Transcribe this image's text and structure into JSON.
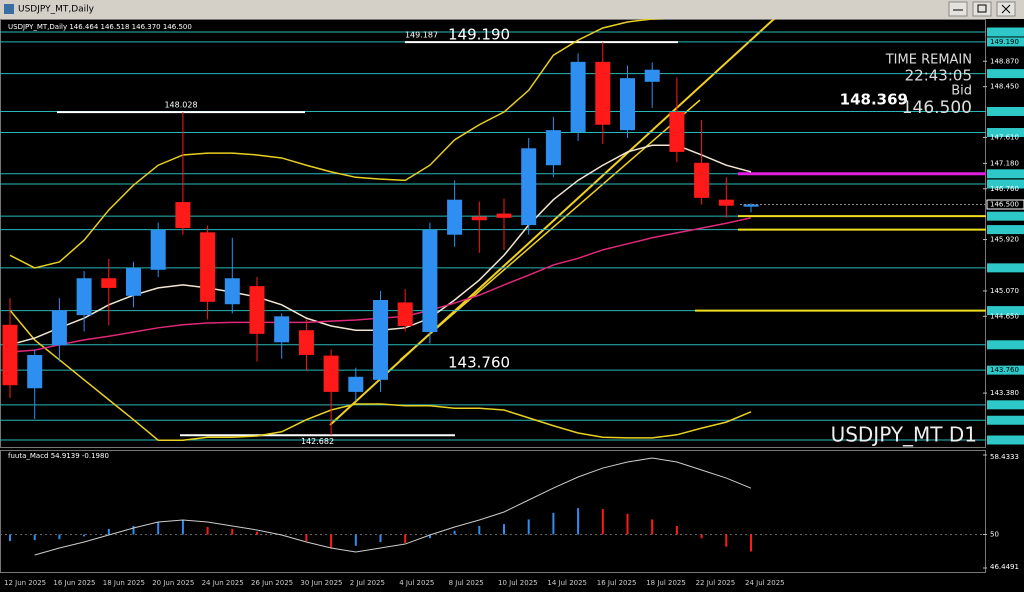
{
  "window": {
    "title": "USDJPY_MT,Daily"
  },
  "chart": {
    "header": "USDJPY_MT,Daily 146.464 146.518 146.370 146.500",
    "watermark": "USDJPY_MT D1",
    "info": {
      "time_label": "TIME REMAIN",
      "time": "22:43:05",
      "bid_label": "Bid",
      "alt_price": "148.369",
      "bid": "146.500"
    },
    "up_color": "#2e8ff0",
    "down_color": "#ff1a1a",
    "candles": [
      {
        "date": "12 Jun 2025",
        "open": 144.51,
        "high": 144.95,
        "low": 143.3,
        "close": 143.51
      },
      {
        "date": null,
        "open": 143.46,
        "high": 144.1,
        "low": 142.95,
        "close": 144.01
      },
      {
        "date": "16 Jun 2025",
        "open": 144.17,
        "high": 144.95,
        "low": 143.9,
        "close": 144.75
      },
      {
        "date": null,
        "open": 144.67,
        "high": 145.4,
        "low": 144.4,
        "close": 145.28
      },
      {
        "date": "18 Jun 2025",
        "open": 145.28,
        "high": 145.6,
        "low": 144.5,
        "close": 145.12
      },
      {
        "date": null,
        "open": 144.99,
        "high": 145.55,
        "low": 144.8,
        "close": 145.45
      },
      {
        "date": "20 Jun 2025",
        "open": 145.42,
        "high": 146.2,
        "low": 145.3,
        "close": 146.08
      },
      {
        "date": null,
        "open": 146.54,
        "high": 148.028,
        "low": 146.0,
        "close": 146.11
      },
      {
        "date": "24 Jun 2025",
        "open": 146.04,
        "high": 146.15,
        "low": 144.6,
        "close": 144.89
      },
      {
        "date": null,
        "open": 144.85,
        "high": 145.95,
        "low": 144.7,
        "close": 145.28
      },
      {
        "date": "26 Jun 2025",
        "open": 145.15,
        "high": 145.3,
        "low": 143.9,
        "close": 144.36
      },
      {
        "date": null,
        "open": 144.22,
        "high": 144.7,
        "low": 143.95,
        "close": 144.65
      },
      {
        "date": "30 Jun 2025",
        "open": 144.42,
        "high": 144.6,
        "low": 143.75,
        "close": 144.01
      },
      {
        "date": null,
        "open": 144.0,
        "high": 144.1,
        "low": 142.682,
        "close": 143.4
      },
      {
        "date": "2 Jul 2025",
        "open": 143.4,
        "high": 143.8,
        "low": 143.25,
        "close": 143.65
      },
      {
        "date": null,
        "open": 143.6,
        "high": 145.07,
        "low": 143.4,
        "close": 144.92
      },
      {
        "date": "4 Jul 2025",
        "open": 144.88,
        "high": 145.1,
        "low": 144.4,
        "close": 144.49
      },
      {
        "date": null,
        "open": 144.39,
        "high": 146.2,
        "low": 144.2,
        "close": 146.08
      },
      {
        "date": "8 Jul 2025",
        "open": 146.0,
        "high": 146.9,
        "low": 145.8,
        "close": 146.58
      },
      {
        "date": null,
        "open": 146.3,
        "high": 146.55,
        "low": 145.7,
        "close": 146.24
      },
      {
        "date": "10 Jul 2025",
        "open": 146.35,
        "high": 146.6,
        "low": 145.75,
        "close": 146.28
      },
      {
        "date": null,
        "open": 146.16,
        "high": 147.6,
        "low": 146.0,
        "close": 147.43
      },
      {
        "date": "14 Jul 2025",
        "open": 147.15,
        "high": 147.95,
        "low": 146.95,
        "close": 147.73
      },
      {
        "date": null,
        "open": 147.7,
        "high": 149.0,
        "low": 147.55,
        "close": 148.86
      },
      {
        "date": "16 Jul 2025",
        "open": 148.86,
        "high": 149.187,
        "low": 147.5,
        "close": 147.82
      },
      {
        "date": null,
        "open": 147.73,
        "high": 148.8,
        "low": 147.6,
        "close": 148.59
      },
      {
        "date": "18 Jul 2025",
        "open": 148.53,
        "high": 148.85,
        "low": 148.1,
        "close": 148.73
      },
      {
        "date": null,
        "open": 148.03,
        "high": 148.6,
        "low": 147.2,
        "close": 147.37
      },
      {
        "date": "22 Jul 2025",
        "open": 147.19,
        "high": 147.9,
        "low": 146.5,
        "close": 146.61
      },
      {
        "date": null,
        "open": 146.58,
        "high": 146.95,
        "low": 146.28,
        "close": 146.48
      },
      {
        "date": "24 Jul 2025",
        "open": 146.464,
        "high": 146.518,
        "low": 146.37,
        "close": 146.5
      }
    ],
    "lines": [
      {
        "color": "#e8d020",
        "values": [
          145.66,
          145.45,
          145.55,
          145.91,
          146.41,
          146.82,
          147.15,
          147.32,
          147.35,
          147.35,
          147.32,
          147.27,
          147.15,
          147.04,
          146.95,
          146.92,
          146.9,
          147.15,
          147.57,
          147.82,
          148.03,
          148.39,
          148.97,
          149.22,
          149.42,
          149.52,
          149.57,
          149.59,
          null,
          null,
          null
        ]
      },
      {
        "color": "#e8d020",
        "values": [
          144.75,
          144.26,
          143.93,
          143.6,
          143.27,
          142.94,
          142.6,
          142.6,
          142.65,
          142.65,
          142.67,
          142.74,
          142.94,
          143.1,
          143.2,
          143.2,
          143.17,
          143.17,
          143.13,
          143.13,
          143.1,
          142.97,
          142.84,
          142.72,
          142.65,
          142.64,
          142.64,
          142.69,
          142.8,
          142.9,
          143.07
        ]
      },
      {
        "color": "#f0e6d2",
        "values": [
          144.18,
          144.29,
          144.46,
          144.62,
          144.84,
          145.0,
          145.12,
          145.17,
          145.12,
          145.05,
          144.97,
          144.84,
          144.62,
          144.49,
          144.42,
          144.42,
          144.46,
          144.62,
          144.92,
          145.25,
          145.66,
          146.16,
          146.58,
          146.9,
          147.15,
          147.37,
          147.48,
          147.48,
          147.32,
          147.15,
          147.04
        ]
      },
      {
        "color": "#e0287a",
        "values": [
          144.06,
          144.09,
          144.18,
          144.26,
          144.32,
          144.39,
          144.46,
          144.51,
          144.54,
          144.55,
          144.55,
          144.55,
          144.55,
          144.57,
          144.59,
          144.62,
          144.65,
          144.75,
          144.87,
          145.0,
          145.17,
          145.33,
          145.5,
          145.61,
          145.75,
          145.85,
          145.95,
          146.03,
          146.11,
          146.19,
          146.28
        ]
      }
    ],
    "levels": [
      {
        "value": 149.354
      },
      {
        "value": 149.19,
        "label": "149.190"
      },
      {
        "value": 148.666
      },
      {
        "value": 148.039
      },
      {
        "value": 147.691
      },
      {
        "value": 147.008,
        "color": "#e020e0"
      },
      {
        "value": 146.839
      },
      {
        "value": 146.307,
        "color": "#f0e020"
      },
      {
        "value": 146.085,
        "color": "#f0e020"
      },
      {
        "value": 145.452
      },
      {
        "value": 144.745,
        "color": "#f0e020"
      },
      {
        "value": 144.179
      },
      {
        "value": 143.76,
        "label": "143.760"
      },
      {
        "value": 143.186
      },
      {
        "value": 142.931
      },
      {
        "value": 142.604
      }
    ],
    "markers": [
      {
        "value": 149.187
      },
      {
        "value": 148.028
      },
      {
        "value": 142.682
      }
    ],
    "yticks": [
      {
        "value": 148.87,
        "label": "148.870"
      },
      {
        "value": 148.45,
        "label": "148.450"
      },
      {
        "value": 147.61,
        "label": "147.610"
      },
      {
        "value": 147.18,
        "label": "147.180"
      },
      {
        "value": 146.76,
        "label": "146.760"
      },
      {
        "value": 145.92,
        "label": "145.920"
      },
      {
        "value": 145.07,
        "label": "145.070"
      },
      {
        "value": 144.65,
        "label": "144.650"
      },
      {
        "value": 143.38,
        "label": "143.380"
      }
    ],
    "current": {
      "value": 146.5,
      "label": "146.500"
    },
    "ylim": [
      142.604,
      149.354
    ]
  },
  "macd": {
    "label": "fuuta_Macd 54.9139 -0.1980",
    "ylim": [
      46.4491,
      58.4333
    ],
    "yticks": [
      58.4333,
      50,
      46.4491
    ],
    "base": 50,
    "hist": [
      49.3,
      49.4,
      49.5,
      49.8,
      50.6,
      50.9,
      51.3,
      51.5,
      50.8,
      50.6,
      50.3,
      49.9,
      49.3,
      48.6,
      48.8,
      49.2,
      49.1,
      49.6,
      50.4,
      50.9,
      51.1,
      51.6,
      52.3,
      52.8,
      52.7,
      52.2,
      51.6,
      50.9,
      49.6,
      48.7,
      48.2
    ],
    "signal": [
      null,
      47.83,
      48.57,
      49.21,
      49.95,
      50.69,
      51.33,
      51.54,
      51.33,
      50.9,
      50.48,
      49.95,
      49.21,
      48.57,
      48.15,
      48.57,
      48.99,
      49.95,
      50.8,
      51.54,
      52.39,
      53.66,
      54.93,
      56.1,
      57.05,
      57.69,
      58.11,
      57.69,
      56.84,
      55.99,
      54.91
    ]
  }
}
